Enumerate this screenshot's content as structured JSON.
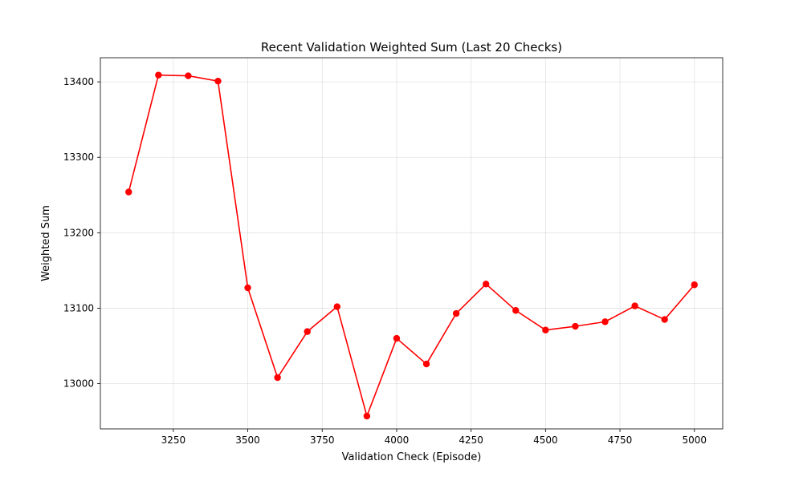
{
  "chart_data": {
    "type": "line",
    "title": "Recent Validation Weighted Sum (Last 20 Checks)",
    "xlabel": "Validation Check (Episode)",
    "ylabel": "Weighted Sum",
    "x": [
      3100,
      3200,
      3300,
      3400,
      3500,
      3600,
      3700,
      3800,
      3900,
      4000,
      4100,
      4200,
      4300,
      4400,
      4500,
      4600,
      4700,
      4800,
      4900,
      5000
    ],
    "series": [
      {
        "values": [
          13254,
          13409,
          13408,
          13401,
          13127,
          13008,
          13069,
          13102,
          12957,
          13060,
          13026,
          13093,
          13132,
          13097,
          13071,
          13076,
          13082,
          13103,
          13085,
          13131
        ],
        "color": "#ff0000",
        "marker": "circle"
      }
    ],
    "xlim": [
      3005,
      5095
    ],
    "ylim": [
      12940,
      13432
    ],
    "xticks": [
      3250,
      3500,
      3750,
      4000,
      4250,
      4500,
      4750,
      5000
    ],
    "yticks": [
      13000,
      13100,
      13200,
      13300,
      13400
    ],
    "grid": true
  }
}
